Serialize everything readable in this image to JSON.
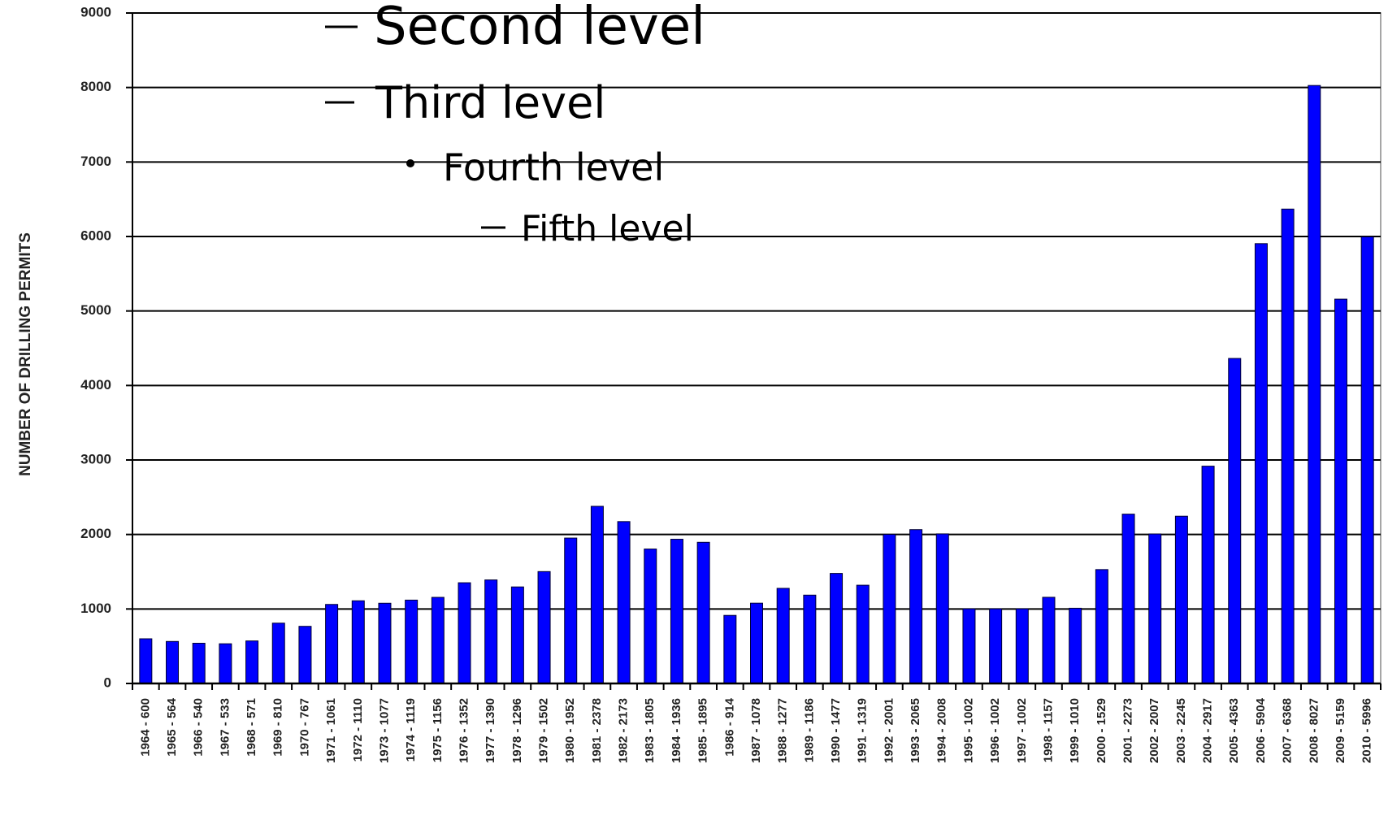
{
  "chart_data": {
    "type": "bar",
    "ylabel": "NUMBER OF DRILLING PERMITS",
    "categories": [
      "1964 - 600",
      "1965 - 564",
      "1966 - 540",
      "1967 - 533",
      "1968 - 571",
      "1969 - 810",
      "1970 - 767",
      "1971 - 1061",
      "1972 - 1110",
      "1973 - 1077",
      "1974 - 1119",
      "1975 - 1156",
      "1976 - 1352",
      "1977 - 1390",
      "1978 - 1296",
      "1979 - 1502",
      "1980 - 1952",
      "1981 - 2378",
      "1982 - 2173",
      "1983 - 1805",
      "1984 - 1936",
      "1985 - 1895",
      "1986 - 914",
      "1987 - 1078",
      "1988 - 1277",
      "1989 - 1186",
      "1990 - 1477",
      "1991 - 1319",
      "1992 - 2001",
      "1993 - 2065",
      "1994 - 2008",
      "1995 - 1002",
      "1996 - 1002",
      "1997 - 1002",
      "1998 - 1157",
      "1999 - 1010",
      "2000 - 1529",
      "2001 - 2273",
      "2002 - 2007",
      "2003 - 2245",
      "2004 - 2917",
      "2005 - 4363",
      "2006 - 5904",
      "2007 - 6368",
      "2008 - 8027",
      "2009 - 5159",
      "2010 - 5996"
    ],
    "values": [
      600,
      564,
      540,
      533,
      571,
      810,
      767,
      1061,
      1110,
      1077,
      1119,
      1156,
      1352,
      1390,
      1296,
      1502,
      1952,
      2378,
      2173,
      1805,
      1936,
      1895,
      914,
      1078,
      1277,
      1186,
      1477,
      1319,
      2001,
      2065,
      2008,
      1002,
      1002,
      1002,
      1157,
      1010,
      1529,
      2273,
      2007,
      2245,
      2917,
      4363,
      5904,
      6368,
      8027,
      5159,
      5996
    ],
    "color": "#0000ff",
    "ylim": [
      0,
      9000
    ],
    "yticks": [
      0,
      1000,
      2000,
      3000,
      4000,
      5000,
      6000,
      7000,
      8000,
      9000
    ],
    "grid": true
  },
  "slide_text": [
    "Second level",
    "Third level",
    "Fourth level",
    "Fifth level"
  ]
}
